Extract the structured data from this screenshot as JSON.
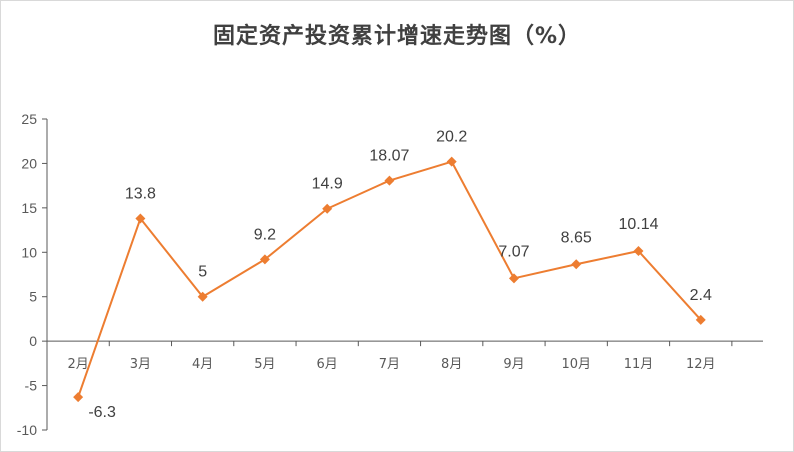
{
  "chart_data": {
    "type": "line",
    "title": "固定资产投资累计增速走势图（%）",
    "xlabel": "",
    "ylabel": "",
    "categories": [
      "2月",
      "3月",
      "4月",
      "5月",
      "6月",
      "7月",
      "8月",
      "9月",
      "10月",
      "11月",
      "12月"
    ],
    "series": [
      {
        "values": [
          -6.3,
          13.8,
          5,
          9.2,
          14.9,
          18.07,
          20.2,
          7.07,
          8.65,
          10.14,
          2.4
        ]
      }
    ],
    "data_labels": [
      "-6.3",
      "13.8",
      "5",
      "9.2",
      "14.9",
      "18.07",
      "20.2",
      "7.07",
      "8.65",
      "10.14",
      "2.4"
    ],
    "ylim": [
      -10,
      25
    ],
    "yticks": [
      -10,
      -5,
      0,
      5,
      10,
      15,
      20,
      25
    ],
    "grid": false,
    "legend": "none",
    "marker": "diamond",
    "line_color": "#ED7D31"
  }
}
